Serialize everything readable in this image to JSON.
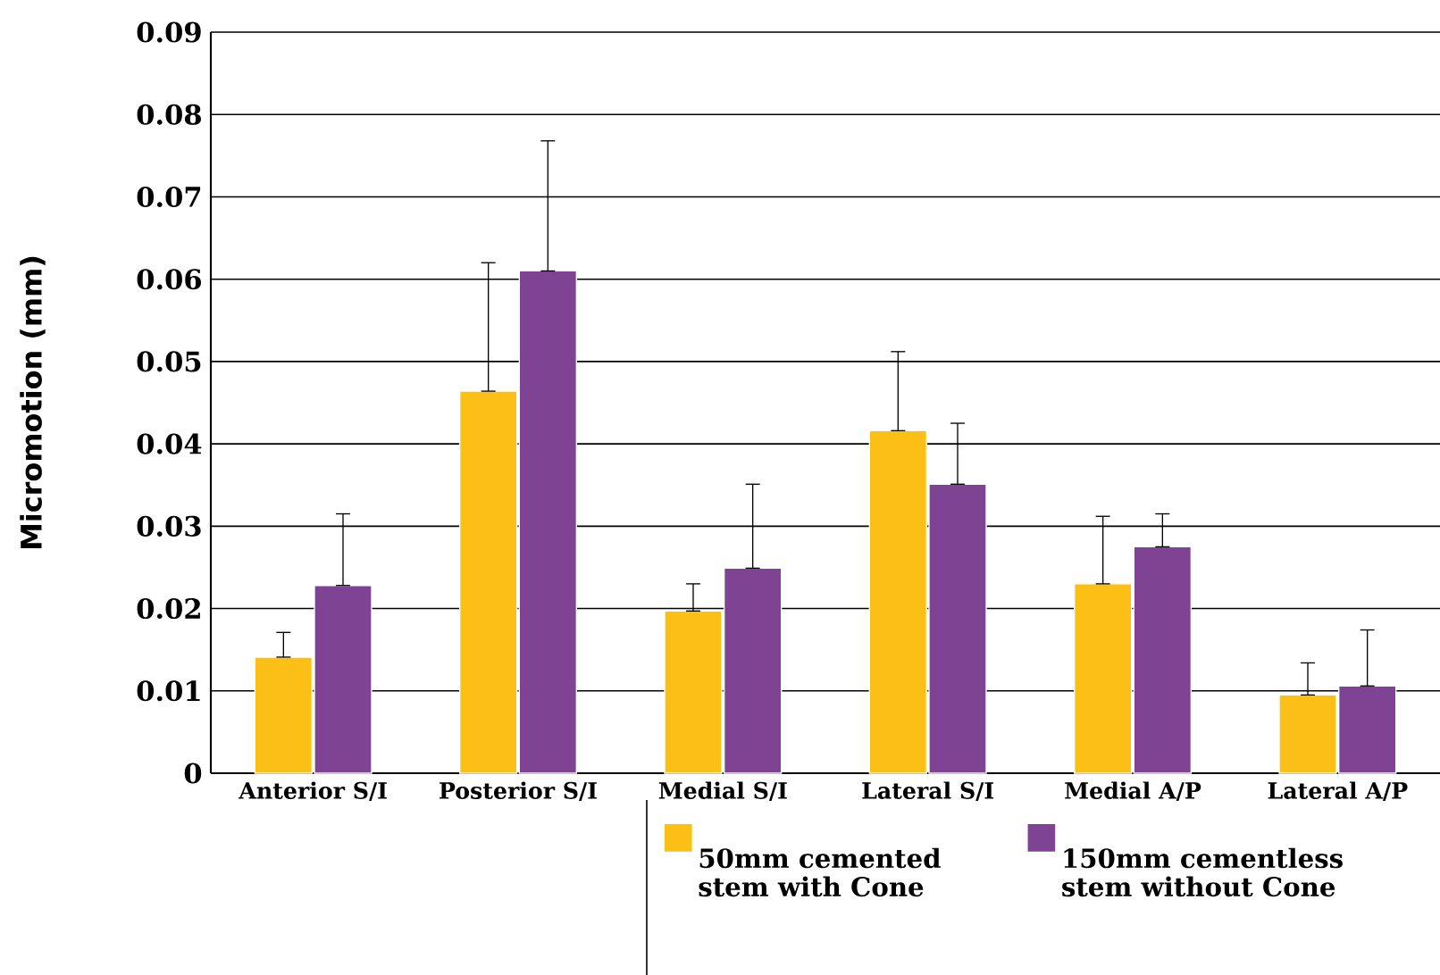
{
  "chart_data": {
    "type": "bar",
    "ylabel": "Micromotion (mm)",
    "categories": [
      "Anterior S/I",
      "Posterior S/I",
      "Medial S/I",
      "Lateral S/I",
      "Medial  A/P",
      "Lateral A/P"
    ],
    "series": [
      {
        "name": "50mm cemented stem with Cone",
        "color": "#fbbf15",
        "values": [
          0.0141,
          0.0464,
          0.0197,
          0.0416,
          0.023,
          0.0095
        ],
        "errors": [
          [
            0.0141,
            0.0171
          ],
          [
            0.0464,
            0.062
          ],
          [
            0.0197,
            0.023
          ],
          [
            0.0416,
            0.0512
          ],
          [
            0.023,
            0.0312
          ],
          [
            0.0095,
            0.0134
          ]
        ]
      },
      {
        "name": "150mm cementless stem without Cone",
        "color": "#7f4394",
        "values": [
          0.0228,
          0.061,
          0.0249,
          0.0351,
          0.0275,
          0.0106
        ],
        "errors": [
          [
            0.0228,
            0.0315
          ],
          [
            0.061,
            0.0768
          ],
          [
            0.0249,
            0.0351
          ],
          [
            0.0351,
            0.0425
          ],
          [
            0.0275,
            0.0315
          ],
          [
            0.0106,
            0.0174
          ]
        ]
      }
    ],
    "ylim": [
      0,
      0.09
    ],
    "yticks": [
      0,
      0.01,
      0.02,
      0.03,
      0.04,
      0.05,
      0.06,
      0.07,
      0.08,
      0.09
    ],
    "grid": "y",
    "legend": "bottom"
  }
}
